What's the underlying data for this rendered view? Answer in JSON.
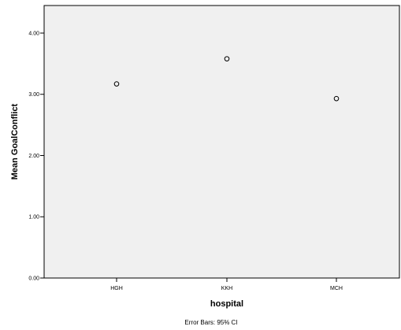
{
  "chart_data": {
    "type": "scatter",
    "categories": [
      "HGH",
      "KKH",
      "MCH"
    ],
    "values": [
      3.17,
      3.58,
      2.93
    ],
    "ylabel": "Mean GoalConflict",
    "xlabel": "hospital",
    "yticks": [
      "0.00",
      "1.00",
      "2.00",
      "3.00",
      "4.00"
    ],
    "ylim": [
      0,
      4.45
    ],
    "footnote": "Error Bars: 95% CI",
    "grid": false,
    "plot_background": "#f0f0f0",
    "marker": "open-circle",
    "marker_color": "#000000"
  }
}
